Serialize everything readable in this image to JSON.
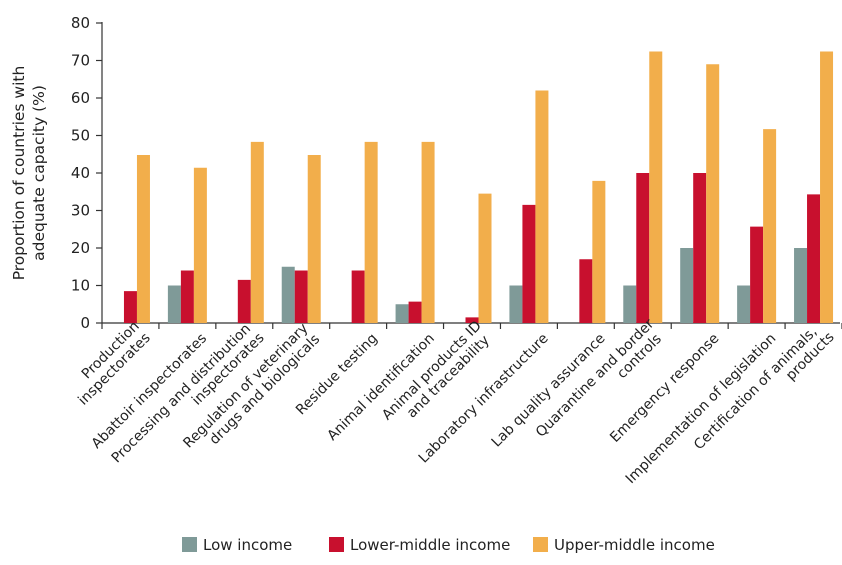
{
  "chart_data": {
    "type": "bar",
    "title": "",
    "xlabel": "",
    "ylabel": "Proportion of countries with adequate capacity (%)",
    "ylabel_lines": [
      "Proportion of countries with",
      "adequate capacity (%)"
    ],
    "ylim": [
      0,
      80
    ],
    "yticks": [
      0,
      10,
      20,
      30,
      40,
      50,
      60,
      70,
      80
    ],
    "grid": false,
    "legend_position": "bottom",
    "categories": [
      "Production inspectorates",
      "Abattoir inspectorates",
      "Processing and distribution inspectorates",
      "Regulation of veterinary drugs and biologicals",
      "Residue testing",
      "Animal identification",
      "Animal products ID and traceability",
      "Laboratory infrastructure",
      "Lab quality assurance",
      "Quarantine and border controls",
      "Emergency response",
      "Implementation of legislation",
      "Certification of animals, products"
    ],
    "category_label_lines": [
      [
        "Production",
        "inspectorates"
      ],
      [
        "Abattoir inspectorates"
      ],
      [
        "Processing and distribution",
        "inspectorates"
      ],
      [
        "Regulation of veterinary",
        "drugs and biologicals"
      ],
      [
        "Residue testing"
      ],
      [
        "Animal identification"
      ],
      [
        "Animal products ID",
        "and traceability"
      ],
      [
        "Laboratory infrastructure"
      ],
      [
        "Lab quality assurance"
      ],
      [
        "Quarantine and border",
        "controls"
      ],
      [
        "Emergency response"
      ],
      [
        "Implementation of legislation"
      ],
      [
        "Certification of animals,",
        "products"
      ]
    ],
    "series": [
      {
        "name": "Low income",
        "color": "#7f9a98",
        "values": [
          0,
          10,
          0,
          15,
          0,
          5,
          0,
          10,
          0,
          10,
          20,
          10,
          20
        ]
      },
      {
        "name": "Lower-middle income",
        "color": "#c8102e",
        "values": [
          8.5,
          14,
          11.5,
          14,
          14,
          5.7,
          1.5,
          31.5,
          17,
          40,
          40,
          25.7,
          34.3
        ]
      },
      {
        "name": "Upper-middle income",
        "color": "#f2ae4b",
        "values": [
          44.8,
          41.4,
          48.3,
          44.8,
          48.3,
          48.3,
          34.5,
          62,
          37.9,
          72.4,
          69,
          51.7,
          72.4
        ]
      }
    ]
  }
}
